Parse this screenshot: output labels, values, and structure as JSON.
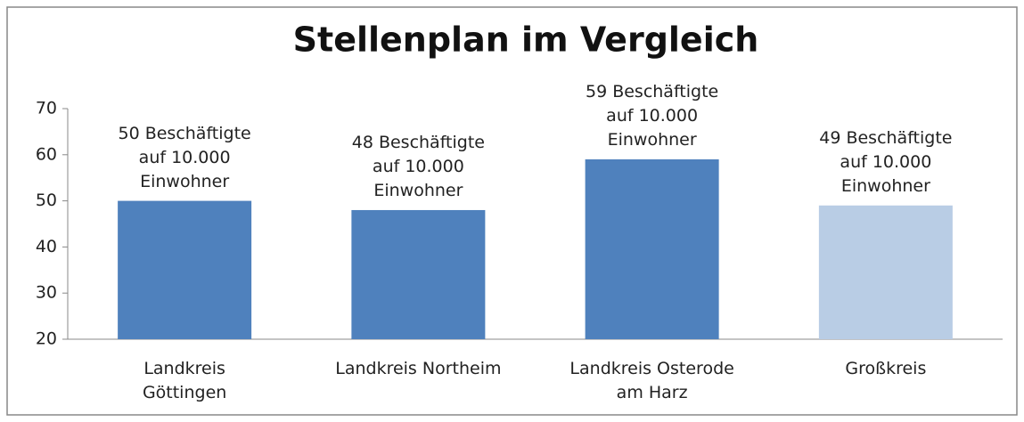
{
  "chart_data": {
    "type": "bar",
    "title": "Stellenplan im Vergleich",
    "categories": [
      "Landkreis Göttingen",
      "Landkreis Northeim",
      "Landkreis Osterode am Harz",
      "Großkreis"
    ],
    "values": [
      50,
      48,
      59,
      49
    ],
    "value_labels": [
      "50 Beschäftigte auf 10.000 Einwohner",
      "48 Beschäftigte auf 10.000 Einwohner",
      "59 Beschäftigte auf 10.000 Einwohner",
      "49 Beschäftigte auf 10.000 Einwohner"
    ],
    "colors": [
      "#4f81bd",
      "#4f81bd",
      "#4f81bd",
      "#b9cde5"
    ],
    "ylim": [
      20,
      70
    ],
    "yticks": [
      20,
      30,
      40,
      50,
      60,
      70
    ],
    "grid": false
  }
}
